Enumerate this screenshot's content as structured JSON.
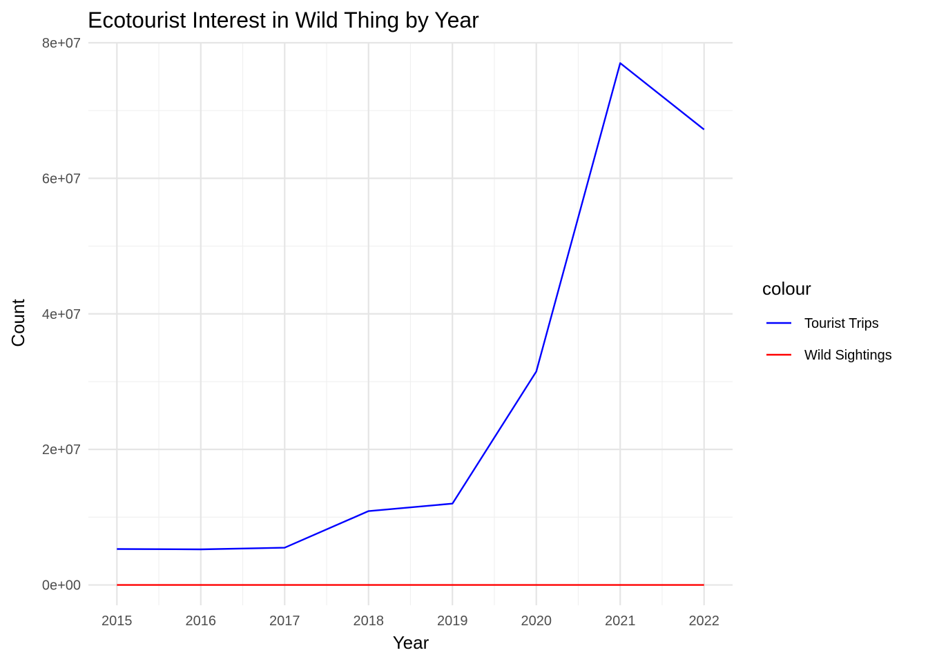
{
  "chart_data": {
    "type": "line",
    "title": "Ecotourist Interest in Wild Thing by Year",
    "xlabel": "Year",
    "ylabel": "Count",
    "x": [
      2015,
      2016,
      2017,
      2018,
      2019,
      2020,
      2021,
      2022
    ],
    "x_tick_labels": [
      "2015",
      "2016",
      "2017",
      "2018",
      "2019",
      "2020",
      "2021",
      "2022"
    ],
    "y_ticks": [
      0,
      20000000,
      40000000,
      60000000,
      80000000
    ],
    "y_tick_labels": [
      "0e+00",
      "2e+07",
      "4e+07",
      "6e+07",
      "8e+07"
    ],
    "xlim": [
      2014.66,
      2022.34
    ],
    "ylim": [
      -3000000,
      80000000
    ],
    "grid": true,
    "legend": {
      "title": "colour",
      "position": "right"
    },
    "series": [
      {
        "name": "Tourist Trips",
        "color": "#0000ff",
        "values": [
          5300000,
          5250000,
          5500000,
          10900000,
          12000000,
          31500000,
          77000000,
          67200000
        ]
      },
      {
        "name": "Wild Sightings",
        "color": "#ff0000",
        "values": [
          150,
          160,
          140,
          170,
          150,
          165,
          150,
          155
        ]
      }
    ]
  }
}
